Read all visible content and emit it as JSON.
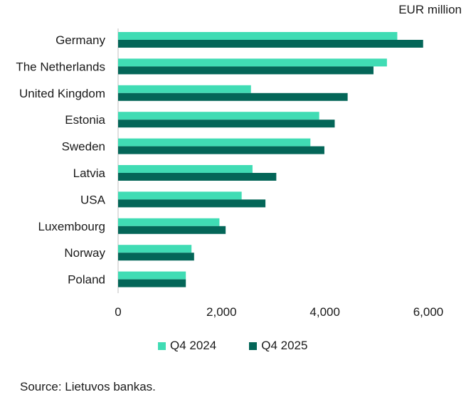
{
  "unit_label": "EUR million",
  "source": "Source: Lietuvos bankas.",
  "colors": {
    "q4_2024": "#40dcb4",
    "q4_2025": "#046658",
    "axis": "#bfbfbf",
    "text": "#1a1a1a"
  },
  "chart_data": {
    "type": "bar",
    "orientation": "horizontal",
    "categories": [
      "Germany",
      "The Netherlands",
      "United Kingdom",
      "Estonia",
      "Sweden",
      "Latvia",
      "USA",
      "Luxembourg",
      "Norway",
      "Poland"
    ],
    "series": [
      {
        "name": "Q4 2024",
        "values": [
          5400,
          5200,
          2570,
          3890,
          3720,
          2600,
          2390,
          1960,
          1420,
          1310
        ]
      },
      {
        "name": "Q4 2025",
        "values": [
          5900,
          4940,
          4440,
          4190,
          3990,
          3060,
          2850,
          2080,
          1470,
          1310
        ]
      }
    ],
    "xticks": [
      "0",
      "2,000",
      "4,000",
      "6,000"
    ],
    "xtick_values": [
      0,
      2000,
      4000,
      6000
    ],
    "xlim": [
      0,
      6000
    ],
    "xlabel": "",
    "ylabel": "",
    "grid": false,
    "legend_position": "bottom"
  }
}
